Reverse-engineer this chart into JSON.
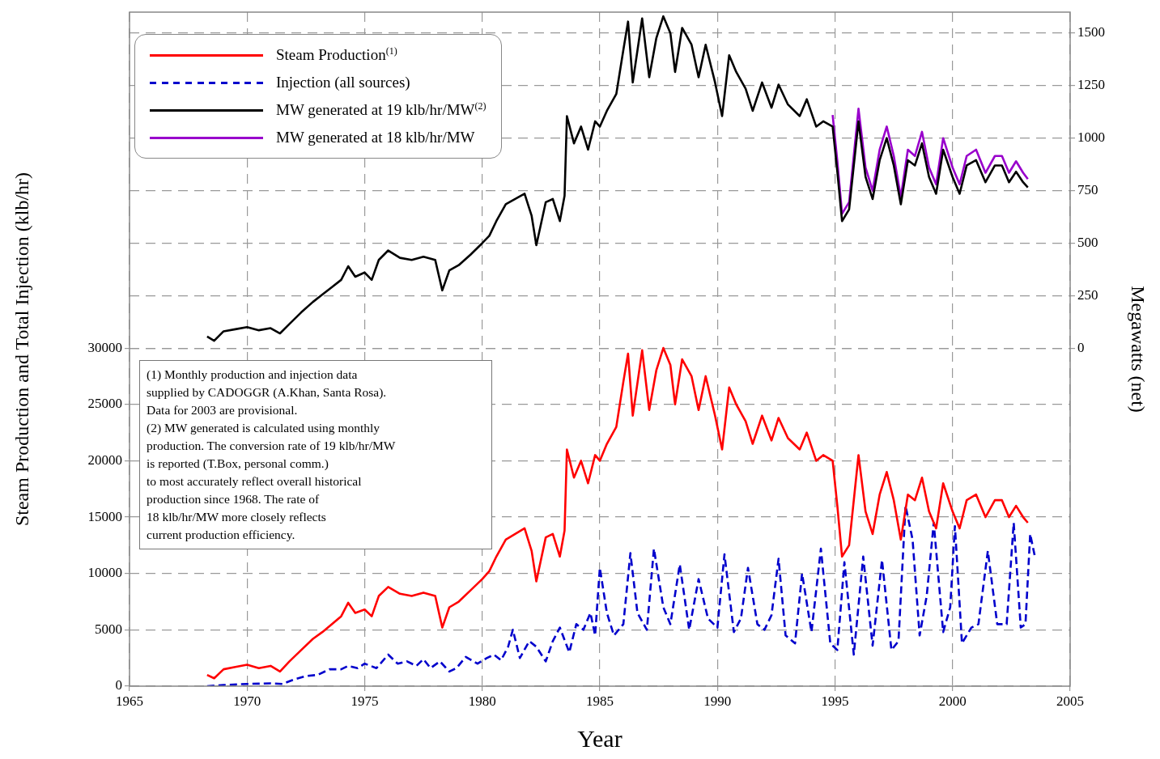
{
  "chart_data": {
    "type": "line",
    "xlabel": "Year",
    "ylabel": "Steam Production and Total Injection (klb/hr)",
    "y2label": "Megawatts (net)",
    "xlim": [
      1965,
      2005
    ],
    "xticks": [
      1965,
      1970,
      1975,
      1980,
      1985,
      1990,
      1995,
      2000,
      2005
    ],
    "ylim": [
      0,
      59800
    ],
    "yticks": [
      0,
      5000,
      10000,
      15000,
      20000,
      25000,
      30000
    ],
    "y2lim": [
      -1610,
      1600
    ],
    "y2ticks": [
      0,
      250,
      500,
      750,
      1000,
      1250,
      1500
    ],
    "grid": true,
    "legend": "top left",
    "line_style": "solid",
    "annotations": [
      "(1) Monthly production and injection data\nsupplied by CADOGGR (A.Khan, Santa Rosa).\nData for 2003 are provisional.\n(2) MW generated is calculated using monthly\nproduction.  The conversion rate of 19 klb/hr/MW\nis reported (T.Box, personal comm.)\nto most accurately reflect overall historical\nproduction since 1968.  The rate of\n18 klb/hr/MW more closely reflects\ncurrent production efficiency."
    ],
    "x": [
      1968.3,
      1968.6,
      1969,
      1969.5,
      1970,
      1970.5,
      1971,
      1971.4,
      1971.8,
      1972.3,
      1972.8,
      1973.2,
      1973.6,
      1974,
      1974.3,
      1974.6,
      1975,
      1975.3,
      1975.6,
      1976,
      1976.5,
      1977,
      1977.5,
      1978,
      1978.3,
      1978.6,
      1979,
      1979.5,
      1980,
      1980.3,
      1980.6,
      1981,
      1981.4,
      1981.8,
      1982.1,
      1982.3,
      1982.7,
      1983,
      1983.3,
      1983.5,
      1983.6,
      1983.9,
      1984.2,
      1984.5,
      1984.8,
      1985,
      1985.3,
      1985.7,
      1986,
      1986.2,
      1986.4,
      1986.8,
      1987.1,
      1987.4,
      1987.7,
      1988,
      1988.2,
      1988.5,
      1988.9,
      1989.2,
      1989.5,
      1989.9,
      1990.2,
      1990.5,
      1990.8,
      1991.2,
      1991.5,
      1991.9,
      1992.3,
      1992.6,
      1993,
      1993.5,
      1993.8,
      1994.2,
      1994.5,
      1994.9,
      1995.1,
      1995.3,
      1995.6,
      1996,
      1996.3,
      1996.6,
      1996.9,
      1997.2,
      1997.5,
      1997.8,
      1998.1,
      1998.4,
      1998.7,
      1999,
      1999.3,
      1999.6,
      2000,
      2000.3,
      2000.6,
      2001,
      2001.4,
      2001.8,
      2002.1,
      2002.4,
      2002.7,
      2003,
      2003.2
    ],
    "series": [
      {
        "name": "Steam Production$^{(1)}$",
        "color": "#ff0000",
        "values": [
          1000,
          700,
          1500,
          1700,
          1900,
          1600,
          1800,
          1300,
          2200,
          3200,
          4200,
          4800,
          5500,
          6200,
          7400,
          6500,
          6800,
          6200,
          8000,
          8800,
          8200,
          8000,
          8300,
          8000,
          5200,
          7000,
          7500,
          8500,
          9500,
          10200,
          11500,
          13000,
          13500,
          14000,
          12000,
          9300,
          13200,
          13500,
          11500,
          13800,
          21000,
          18500,
          20000,
          18000,
          20500,
          20000,
          21500,
          23000,
          27000,
          29500,
          24000,
          29800,
          24500,
          28000,
          30000,
          28500,
          25000,
          29000,
          27500,
          24500,
          27500,
          24000,
          21000,
          26500,
          25000,
          23500,
          21500,
          24000,
          21800,
          23800,
          22000,
          21000,
          22500,
          20000,
          20500,
          20000,
          16000,
          11500,
          12500,
          20500,
          15500,
          13500,
          17000,
          19000,
          16500,
          13000,
          17000,
          16500,
          18500,
          15500,
          14000,
          18000,
          15500,
          14000,
          16500,
          17000,
          15000,
          16500,
          16500,
          15000,
          16000,
          15000,
          14500
        ]
      },
      {
        "name": "Injection (all sources)",
        "color": "#0000cc",
        "line_style": "dashed",
        "x": [
          1968.3,
          1969,
          1970,
          1971,
          1971.5,
          1972,
          1972.5,
          1973,
          1973.5,
          1974,
          1974.3,
          1974.7,
          1975,
          1975.5,
          1976,
          1976.4,
          1976.8,
          1977.2,
          1977.5,
          1977.8,
          1978.2,
          1978.6,
          1978.9,
          1979.3,
          1979.8,
          1980.2,
          1980.5,
          1980.8,
          1981.1,
          1981.3,
          1981.6,
          1982,
          1982.3,
          1982.7,
          1983,
          1983.3,
          1983.7,
          1984,
          1984.3,
          1984.6,
          1984.8,
          1985,
          1985.3,
          1985.6,
          1986,
          1986.3,
          1986.6,
          1987,
          1987.3,
          1987.7,
          1988,
          1988.4,
          1988.8,
          1989.2,
          1989.6,
          1990,
          1990.3,
          1990.7,
          1991,
          1991.3,
          1991.7,
          1992,
          1992.3,
          1992.6,
          1992.9,
          1993.3,
          1993.6,
          1994,
          1994.4,
          1994.8,
          1995.1,
          1995.4,
          1995.8,
          1996.2,
          1996.6,
          1997,
          1997.4,
          1997.7,
          1998,
          1998.3,
          1998.6,
          1998.9,
          1999.2,
          1999.6,
          1999.9,
          2000.1,
          2000.4,
          2000.8,
          2001.1,
          2001.5,
          2001.9,
          2002.3,
          2002.6,
          2002.9,
          2003.1,
          2003.3,
          2003.5
        ],
        "values": [
          0,
          100,
          200,
          250,
          200,
          600,
          900,
          1000,
          1500,
          1500,
          1800,
          1600,
          2000,
          1600,
          2800,
          2000,
          2200,
          1800,
          2400,
          1600,
          2200,
          1300,
          1600,
          2600,
          2000,
          2500,
          2800,
          2300,
          3500,
          5000,
          2500,
          4000,
          3500,
          2200,
          4000,
          5200,
          3000,
          5500,
          5000,
          6500,
          4500,
          10500,
          6500,
          4500,
          5500,
          11800,
          6500,
          5000,
          12200,
          7000,
          5500,
          10800,
          5000,
          9500,
          6000,
          5200,
          11700,
          4800,
          6000,
          10500,
          5500,
          5000,
          6300,
          11300,
          4500,
          3800,
          10000,
          4800,
          12200,
          3800,
          3200,
          11000,
          2800,
          11500,
          3600,
          11200,
          3200,
          4000,
          16000,
          13000,
          4500,
          8000,
          14500,
          4800,
          7000,
          14200,
          3800,
          5200,
          5500,
          12000,
          5500,
          5500,
          14500,
          5200,
          5500,
          13500,
          11500
        ]
      },
      {
        "name": "MW generated at 19 klb/hr/MW$^{(2)}$",
        "color": "#000000",
        "axis": "y2",
        "values": [
          55,
          35,
          80,
          90,
          100,
          85,
          95,
          70,
          115,
          170,
          220,
          255,
          290,
          325,
          390,
          340,
          360,
          325,
          420,
          465,
          430,
          420,
          435,
          420,
          275,
          370,
          395,
          445,
          500,
          535,
          605,
          685,
          710,
          735,
          630,
          490,
          695,
          710,
          605,
          725,
          1105,
          975,
          1055,
          945,
          1080,
          1055,
          1130,
          1210,
          1420,
          1555,
          1265,
          1570,
          1290,
          1475,
          1580,
          1500,
          1315,
          1525,
          1445,
          1290,
          1445,
          1265,
          1105,
          1395,
          1315,
          1235,
          1130,
          1265,
          1145,
          1255,
          1160,
          1105,
          1185,
          1055,
          1080,
          1055,
          840,
          605,
          660,
          1080,
          815,
          710,
          895,
          1000,
          870,
          685,
          895,
          870,
          975,
          815,
          735,
          945,
          815,
          735,
          870,
          895,
          790,
          870,
          870,
          790,
          840,
          790,
          765
        ]
      },
      {
        "name": "MW generated at 18 klb/hr/MW",
        "color": "#9900cc",
        "axis": "y2",
        "x": [
          1994.9,
          1995.1,
          1995.3,
          1995.6,
          1996,
          1996.3,
          1996.6,
          1996.9,
          1997.2,
          1997.5,
          1997.8,
          1998.1,
          1998.4,
          1998.7,
          1999,
          1999.3,
          1999.6,
          2000,
          2000.3,
          2000.6,
          2001,
          2001.4,
          2001.8,
          2002.1,
          2002.4,
          2002.7,
          2003,
          2003.2
        ],
        "values": [
          1110,
          890,
          640,
          695,
          1140,
          860,
          750,
          945,
          1055,
          915,
          720,
          945,
          915,
          1030,
          860,
          780,
          1000,
          860,
          780,
          915,
          945,
          835,
          915,
          915,
          835,
          890,
          835,
          805
        ]
      }
    ]
  }
}
